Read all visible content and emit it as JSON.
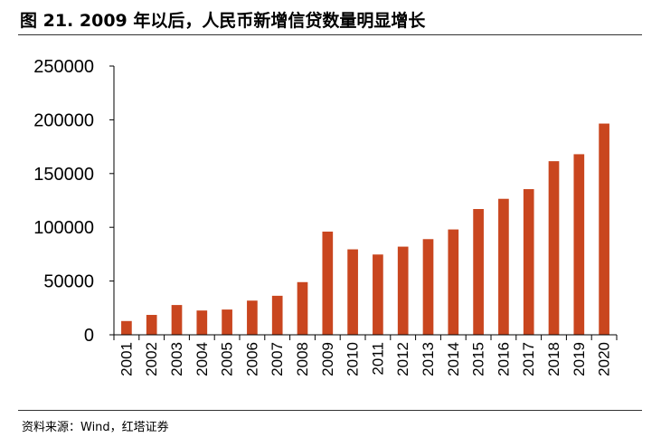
{
  "figure_title": "图 21. 2009 年以后，人民币新增信贷数量明显增长",
  "source": "资料来源：Wind，红塔证券",
  "colors": {
    "bar": "#C9461F",
    "axis": "#000000"
  },
  "chart_data": {
    "type": "bar",
    "title": "",
    "xlabel": "",
    "ylabel": "",
    "ylim": [
      0,
      250000
    ],
    "yticks": [
      0,
      50000,
      100000,
      150000,
      200000,
      250000
    ],
    "ytick_labels": [
      "0",
      "50000",
      "100000",
      "150000",
      "200000",
      "250000"
    ],
    "grid": false,
    "categories": [
      "2001",
      "2002",
      "2003",
      "2004",
      "2005",
      "2006",
      "2007",
      "2008",
      "2009",
      "2010",
      "2011",
      "2012",
      "2013",
      "2014",
      "2015",
      "2016",
      "2017",
      "2018",
      "2019",
      "2020"
    ],
    "values": [
      12800,
      18500,
      27700,
      22600,
      23500,
      31800,
      36300,
      49000,
      96000,
      79500,
      74700,
      82000,
      89000,
      98000,
      117000,
      126500,
      135500,
      161500,
      168000,
      196500
    ]
  }
}
